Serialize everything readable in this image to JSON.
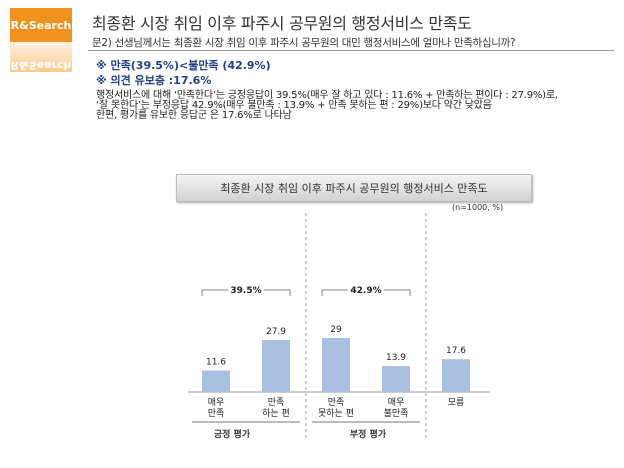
{
  "logo": {
    "text": "R&Search"
  },
  "header": {
    "title": "최종환 시장 취임 이후 파주시 공무원의  행정서비스 만족도",
    "question": "문2) 선생님께서는 최종환 시장 취임 이후 파주시 공무원의 대민 행정서비스에 얼마나 만족하십니까?"
  },
  "highlights": [
    "※ 만족(39.5%)<불만족 (42.9%)",
    "※ 의견 유보층 :17.6%"
  ],
  "description": [
    "행정서비스에 대해 ‘만족한다’는 긍정응답이 39.5%(매우 잘 하고 있다 : 11.6% + 만족하는 편이다 : 27.9%)로,",
    "‘잘 못한다’는 부정응답 42.9%(매우 불만족 : 13.9% + 만족 못하는 편 : 29%)보다 약간 낮았음",
    "한편, 평가를 유보한 응답군 은 17.6%로 나타남"
  ],
  "chart_data": {
    "type": "bar",
    "title": "최종환 시장 취임 이후 파주시 공무원의 행정서비스 만족도",
    "unit_note": "(n=1000, %)",
    "categories": [
      "매우\n만족",
      "만족\n하는 편",
      "만족\n못하는 편",
      "매우\n불만족",
      "모름"
    ],
    "values": [
      11.6,
      27.9,
      29,
      13.9,
      17.6
    ],
    "value_labels": [
      "11.6",
      "27.9",
      "29",
      "13.9",
      "17.6"
    ],
    "ylim": [
      0,
      35
    ],
    "bar_color": "#a9c0e0",
    "groups": [
      {
        "name": "긍정 평가",
        "total": "39.5%",
        "indices": [
          0,
          1
        ]
      },
      {
        "name": "부정 평가",
        "total": "42.9%",
        "indices": [
          2,
          3
        ]
      }
    ]
  }
}
